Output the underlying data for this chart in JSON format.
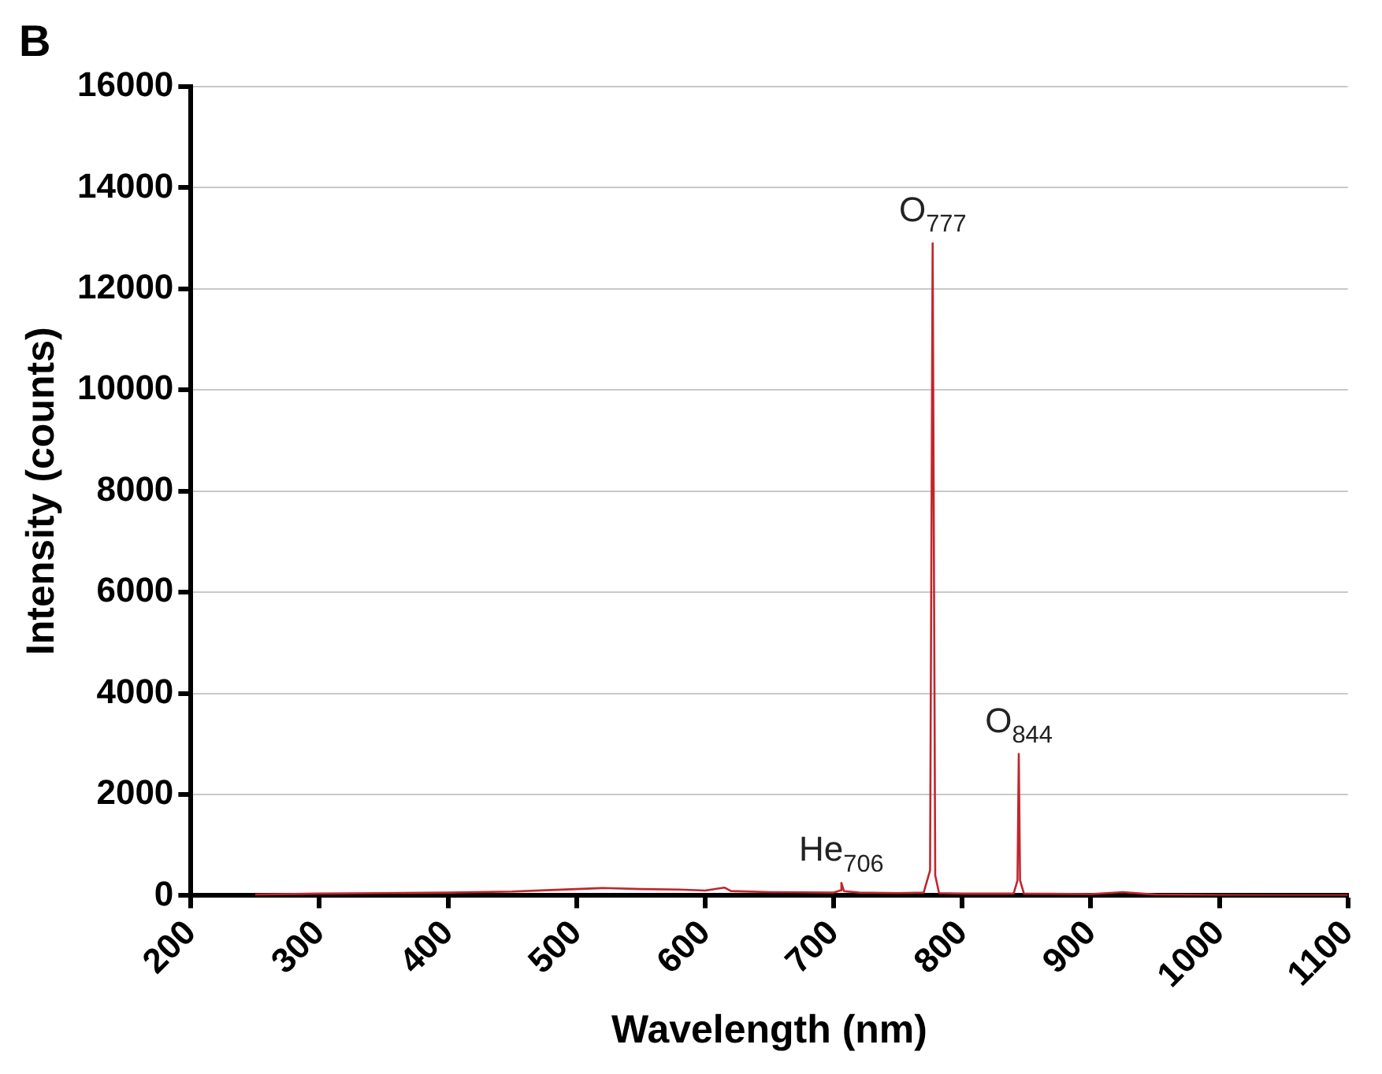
{
  "chart_data": {
    "type": "line",
    "title": "B",
    "xlabel": "Wavelength (nm)",
    "ylabel": "Intensity (counts)",
    "xlim": [
      200,
      1100
    ],
    "xticks": [
      200,
      300,
      400,
      500,
      600,
      700,
      800,
      900,
      1000,
      1100
    ],
    "ylim": [
      0,
      16000
    ],
    "yticks": [
      0,
      2000,
      4000,
      6000,
      8000,
      10000,
      12000,
      14000,
      16000
    ],
    "grid": "y",
    "legend": false,
    "marker": "none",
    "line_style": "solid",
    "series": [
      {
        "color": "#c0272d",
        "x": [
          250,
          300,
          350,
          400,
          450,
          480,
          500,
          520,
          550,
          580,
          600,
          615,
          620,
          650,
          700,
          705,
          706,
          708,
          720,
          750,
          770,
          775,
          777,
          779,
          782,
          800,
          840,
          843,
          844,
          845,
          848,
          900,
          925,
          950,
          1000,
          1050,
          1100
        ],
        "values": [
          20,
          40,
          50,
          60,
          80,
          110,
          130,
          150,
          130,
          120,
          100,
          160,
          90,
          70,
          60,
          100,
          250,
          90,
          60,
          50,
          60,
          500,
          12900,
          400,
          50,
          40,
          40,
          300,
          2800,
          300,
          40,
          30,
          70,
          20,
          10,
          5,
          5
        ]
      }
    ],
    "annotations": [
      {
        "text": "O$_{777}$",
        "x": 777,
        "y": 12900
      },
      {
        "text": "O$_{844}$",
        "x": 844,
        "y": 2800
      },
      {
        "text": "He$_{706}$",
        "x": 706,
        "y": 250
      }
    ]
  }
}
